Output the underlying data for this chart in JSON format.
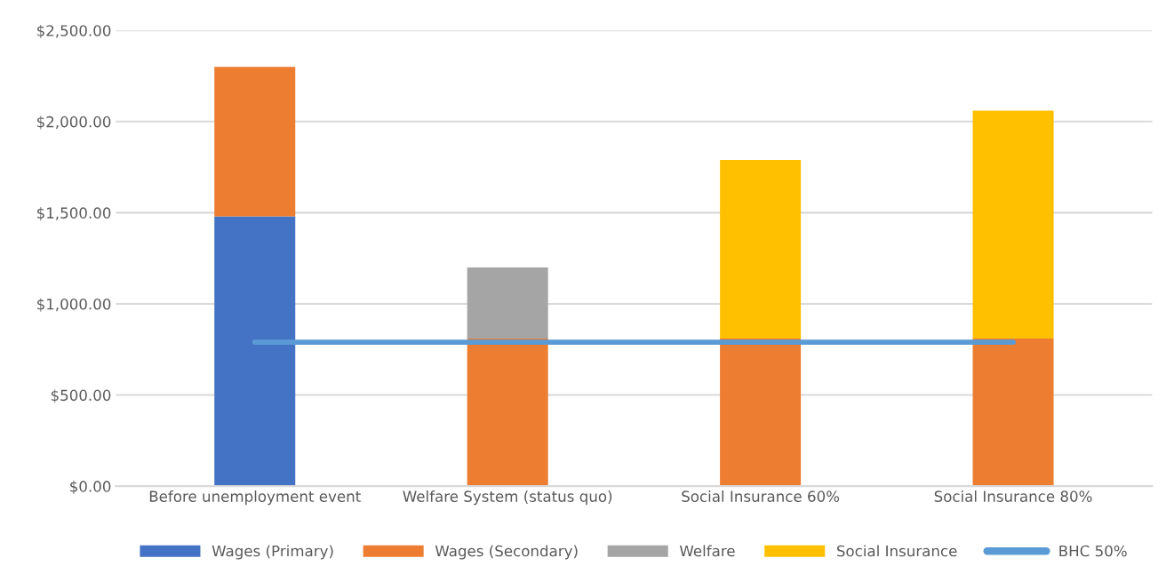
{
  "chart_data": {
    "type": "bar",
    "stacked": true,
    "categories": [
      "Before unemployment event",
      "Welfare System (status quo)",
      "Social Insurance 60%",
      "Social Insurance 80%"
    ],
    "series": [
      {
        "name": "Wages (Primary)",
        "color": "#4472c4",
        "values": [
          1480,
          null,
          null,
          null
        ]
      },
      {
        "name": "Wages (Secondary)",
        "color": "#ed7d31",
        "values": [
          820,
          810,
          810,
          810
        ]
      },
      {
        "name": "Welfare",
        "color": "#a5a5a5",
        "values": [
          null,
          390,
          null,
          null
        ]
      },
      {
        "name": "Social Insurance",
        "color": "#ffc000",
        "values": [
          null,
          null,
          980,
          1250
        ]
      },
      {
        "name": "BHC 50%",
        "type": "line",
        "color": "#5b9bd5",
        "values": [
          790,
          790,
          790,
          790
        ]
      }
    ],
    "ylim": [
      0,
      2500
    ],
    "yticks": [
      {
        "value": 0,
        "label": "$0.00"
      },
      {
        "value": 500,
        "label": "$500.00"
      },
      {
        "value": 1000,
        "label": "$1,000.00"
      },
      {
        "value": 1500,
        "label": "$1,500.00"
      },
      {
        "value": 2000,
        "label": "$2,000.00"
      },
      {
        "value": 2500,
        "label": "$2,500.00"
      }
    ],
    "grid": "y",
    "legend": "bottom",
    "marker": "none",
    "line_style": "solid"
  }
}
